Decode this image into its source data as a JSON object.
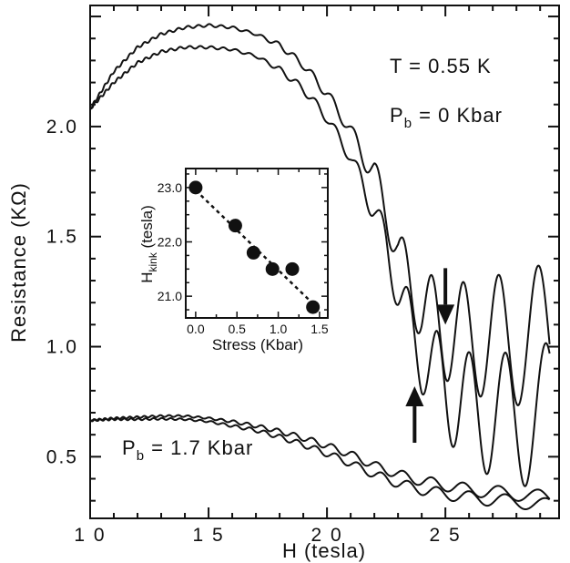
{
  "chart_data": [
    {
      "type": "line",
      "xlabel": "H  (tesla)",
      "ylabel": "Resistance  (KΩ)",
      "xlim": [
        10,
        29.8
      ],
      "ylim": [
        0.22,
        2.55
      ],
      "xticks": [
        10,
        15,
        20,
        25
      ],
      "xtick_labels": [
        "1 0",
        "1 5",
        "2 0",
        "2 5"
      ],
      "yticks": [
        0.5,
        1.0,
        1.5,
        2.0
      ],
      "ytick_labels": [
        "0.5",
        "1.0",
        "1.5",
        "2.0"
      ],
      "grid": false,
      "annotations": [
        {
          "text": "T = 0.55 K"
        },
        {
          "text": "P",
          "sub": "b",
          "rest": " = 0 Kbar"
        },
        {
          "text": "P",
          "sub": "b",
          "rest": " = 1.7 Kbar"
        }
      ],
      "arrows": [
        {
          "direction": "down",
          "x": 25.0,
          "y_tip": 1.1
        },
        {
          "direction": "up",
          "x": 23.7,
          "y_tip": 0.82
        }
      ],
      "series": [
        {
          "group": "Pb = 0 Kbar",
          "x": [
            10,
            11,
            12,
            13,
            14,
            15,
            16,
            17,
            18,
            19,
            20,
            21,
            22,
            22.5,
            23,
            23.5,
            24,
            24.5,
            25,
            25.5,
            26,
            26.5,
            27,
            27.5,
            28,
            28.5,
            29,
            29.4
          ],
          "y": [
            2.08,
            2.25,
            2.36,
            2.42,
            2.45,
            2.46,
            2.45,
            2.42,
            2.37,
            2.28,
            2.15,
            1.98,
            1.78,
            1.62,
            1.42,
            1.3,
            1.18,
            1.12,
            1.08,
            1.05,
            1.04,
            1.04,
            1.04,
            1.04,
            1.04,
            1.04,
            1.04,
            1.04
          ]
        },
        {
          "group": "Pb = 0 Kbar",
          "x": [
            10,
            11,
            12,
            13,
            14,
            15,
            16,
            17,
            18,
            19,
            20,
            21,
            22,
            22.5,
            23,
            23.5,
            24,
            24.5,
            25,
            25.5,
            26,
            26.5,
            27,
            27.5,
            28,
            28.5,
            29,
            29.4
          ],
          "y": [
            2.08,
            2.2,
            2.29,
            2.34,
            2.36,
            2.36,
            2.35,
            2.32,
            2.26,
            2.17,
            2.04,
            1.86,
            1.62,
            1.46,
            1.26,
            1.1,
            0.96,
            0.88,
            0.82,
            0.76,
            0.72,
            0.7,
            0.69,
            0.68,
            0.68,
            0.68,
            0.68,
            0.68
          ]
        },
        {
          "group": "Pb = 1.7 Kbar",
          "x": [
            10,
            11,
            12,
            13,
            14,
            15,
            16,
            17,
            18,
            19,
            20,
            21,
            22,
            23,
            24,
            25,
            26,
            27,
            28,
            29,
            29.4
          ],
          "y": [
            0.665,
            0.675,
            0.68,
            0.685,
            0.685,
            0.675,
            0.66,
            0.64,
            0.615,
            0.585,
            0.55,
            0.51,
            0.46,
            0.42,
            0.39,
            0.37,
            0.35,
            0.34,
            0.33,
            0.32,
            0.31
          ]
        },
        {
          "group": "Pb = 1.7 Kbar",
          "x": [
            10,
            11,
            12,
            13,
            14,
            15,
            16,
            17,
            18,
            19,
            20,
            21,
            22,
            23,
            24,
            25,
            26,
            27,
            28,
            29,
            29.4
          ],
          "y": [
            0.665,
            0.67,
            0.67,
            0.672,
            0.67,
            0.66,
            0.64,
            0.62,
            0.59,
            0.555,
            0.515,
            0.47,
            0.42,
            0.38,
            0.35,
            0.33,
            0.315,
            0.305,
            0.295,
            0.285,
            0.28
          ]
        }
      ]
    },
    {
      "type": "scatter",
      "xlabel": "Stress  (Kbar)",
      "ylabel_main": "H",
      "ylabel_sub": "kink",
      "ylabel_rest": " (tesla)",
      "xlim": [
        -0.12,
        1.6
      ],
      "ylim": [
        20.6,
        23.35
      ],
      "xticks": [
        0.0,
        0.5,
        1.0,
        1.5
      ],
      "xtick_labels": [
        "0.0",
        "0.5",
        "1.0",
        "1.5"
      ],
      "yticks": [
        21.0,
        22.0,
        23.0
      ],
      "ytick_labels": [
        "21.0",
        "22.0",
        "23.0"
      ],
      "fit_line": {
        "x": [
          0.0,
          1.45
        ],
        "y": [
          22.95,
          20.82
        ]
      },
      "x": [
        0.0,
        0.48,
        0.7,
        0.93,
        1.17,
        1.42
      ],
      "y": [
        23.0,
        22.3,
        21.8,
        21.5,
        21.5,
        20.8
      ]
    }
  ]
}
